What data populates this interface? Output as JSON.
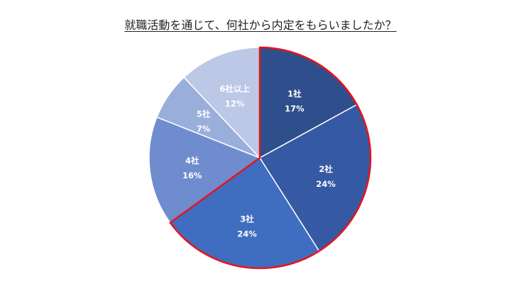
{
  "chart_data": {
    "type": "pie",
    "title": "就職活動を通じて、何社から内定をもらいましたか？",
    "slices": [
      {
        "label": "1社",
        "value": 17,
        "value_label": "17%",
        "color": "#2f4f8c"
      },
      {
        "label": "2社",
        "value": 24,
        "value_label": "24%",
        "color": "#3659a3"
      },
      {
        "label": "3社",
        "value": 24,
        "value_label": "24%",
        "color": "#3f6dc0",
        "highlighted": true
      },
      {
        "label": "4社",
        "value": 16,
        "value_label": "16%",
        "color": "#6f8ccf"
      },
      {
        "label": "5社",
        "value": 7,
        "value_label": "7%",
        "color": "#9aaedc"
      },
      {
        "label": "6社以上",
        "value": 12,
        "value_label": "12%",
        "color": "#bcc8e6"
      }
    ],
    "start": "12 o'clock",
    "direction": "clockwise",
    "highlight_color": "#e8131b",
    "legend": "none"
  }
}
